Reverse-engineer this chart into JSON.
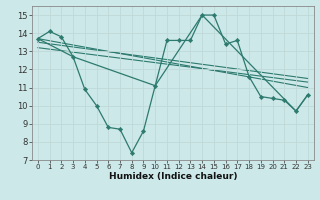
{
  "xlabel": "Humidex (Indice chaleur)",
  "bg_color": "#cce8e8",
  "grid_color": "#c0d8d8",
  "line_color": "#2d7a6e",
  "xlim": [
    -0.5,
    23.5
  ],
  "ylim": [
    7,
    15.5
  ],
  "xticks": [
    0,
    1,
    2,
    3,
    4,
    5,
    6,
    7,
    8,
    9,
    10,
    11,
    12,
    13,
    14,
    15,
    16,
    17,
    18,
    19,
    20,
    21,
    22,
    23
  ],
  "yticks": [
    7,
    8,
    9,
    10,
    11,
    12,
    13,
    14,
    15
  ],
  "series_main_x": [
    0,
    1,
    2,
    3,
    4,
    5,
    6,
    7,
    8,
    9,
    10,
    11,
    12,
    13,
    14,
    15,
    16,
    17,
    18,
    19,
    20,
    21,
    22,
    23
  ],
  "series_main_y": [
    13.7,
    14.1,
    13.8,
    12.7,
    10.9,
    10.0,
    8.8,
    8.7,
    7.4,
    8.6,
    11.1,
    13.6,
    13.6,
    13.6,
    15.0,
    15.0,
    13.4,
    13.6,
    11.6,
    10.5,
    10.4,
    10.3,
    9.7,
    10.6
  ],
  "series2_x": [
    0,
    3,
    10,
    14,
    22,
    23
  ],
  "series2_y": [
    13.7,
    12.7,
    11.1,
    15.0,
    9.7,
    10.6
  ],
  "trend1_x": [
    0,
    23
  ],
  "trend1_y": [
    13.7,
    11.0
  ],
  "trend2_x": [
    0,
    23
  ],
  "trend2_y": [
    13.5,
    11.5
  ],
  "trend3_x": [
    0,
    23
  ],
  "trend3_y": [
    13.2,
    11.3
  ]
}
